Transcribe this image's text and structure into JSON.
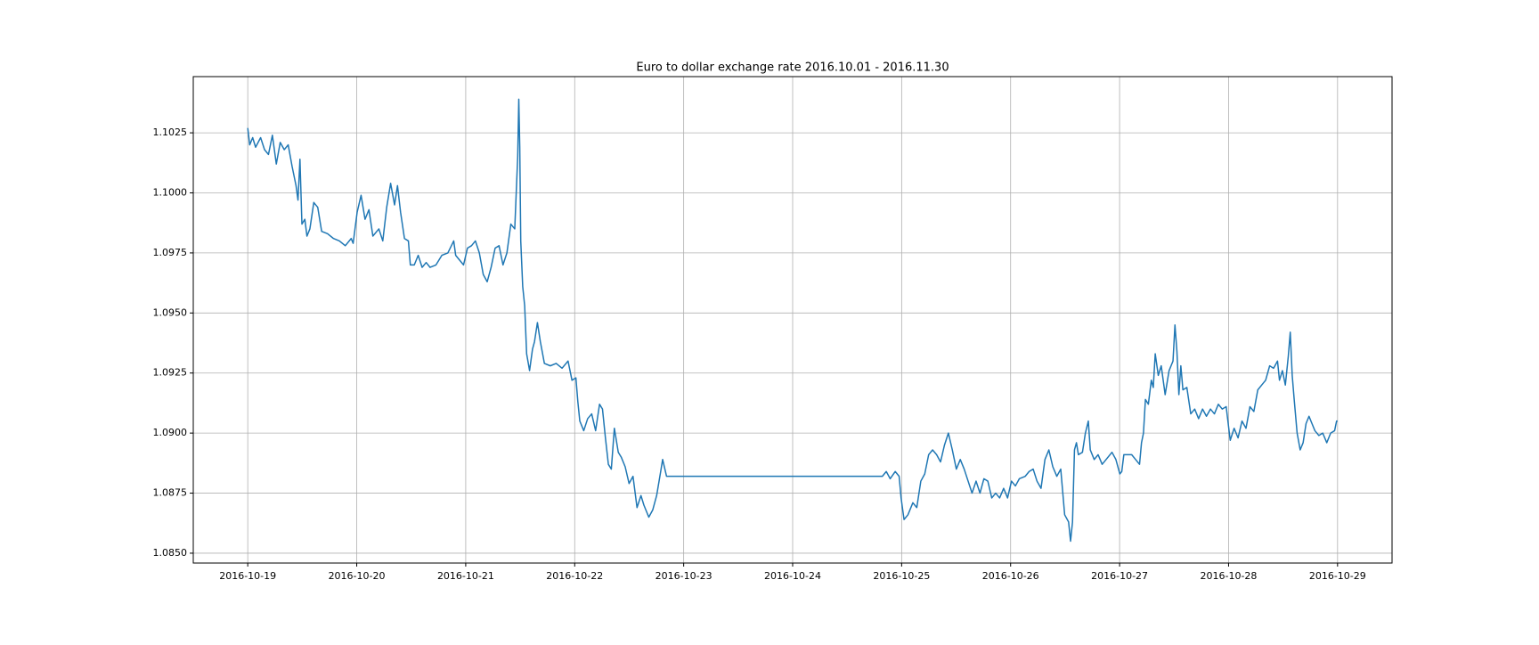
{
  "chart_data": {
    "type": "line",
    "title": "Euro to dollar exchange rate 2016.10.01 - 2016.11.30",
    "color": "#1f77b4",
    "grid": true,
    "xlim": [
      17092.5,
      17103.5
    ],
    "xticks": [
      {
        "value": 17093,
        "label": "2016-10-19"
      },
      {
        "value": 17094,
        "label": "2016-10-20"
      },
      {
        "value": 17095,
        "label": "2016-10-21"
      },
      {
        "value": 17096,
        "label": "2016-10-22"
      },
      {
        "value": 17097,
        "label": "2016-10-23"
      },
      {
        "value": 17098,
        "label": "2016-10-24"
      },
      {
        "value": 17099,
        "label": "2016-10-25"
      },
      {
        "value": 17100,
        "label": "2016-10-26"
      },
      {
        "value": 17101,
        "label": "2016-10-27"
      },
      {
        "value": 17102,
        "label": "2016-10-28"
      },
      {
        "value": 17103,
        "label": "2016-10-29"
      }
    ],
    "ylim": [
      1.08459,
      1.10484
    ],
    "yticks": [
      {
        "value": 1.085,
        "label": "1.0850"
      },
      {
        "value": 1.0875,
        "label": "1.0875"
      },
      {
        "value": 1.09,
        "label": "1.0900"
      },
      {
        "value": 1.0925,
        "label": "1.0925"
      },
      {
        "value": 1.095,
        "label": "1.0950"
      },
      {
        "value": 1.0975,
        "label": "1.0975"
      },
      {
        "value": 1.1,
        "label": "1.1000"
      },
      {
        "value": 1.1025,
        "label": "1.1025"
      }
    ],
    "x": [
      17093.0,
      17093.018,
      17093.045,
      17093.072,
      17093.118,
      17093.154,
      17093.19,
      17093.226,
      17093.262,
      17093.298,
      17093.335,
      17093.371,
      17093.407,
      17093.443,
      17093.461,
      17093.479,
      17093.497,
      17093.524,
      17093.543,
      17093.57,
      17093.606,
      17093.642,
      17093.678,
      17093.732,
      17093.787,
      17093.841,
      17093.895,
      17093.949,
      17093.967,
      17094.004,
      17094.04,
      17094.076,
      17094.112,
      17094.148,
      17094.203,
      17094.239,
      17094.275,
      17094.311,
      17094.347,
      17094.374,
      17094.402,
      17094.438,
      17094.474,
      17094.492,
      17094.528,
      17094.564,
      17094.6,
      17094.637,
      17094.673,
      17094.727,
      17094.781,
      17094.836,
      17094.89,
      17094.908,
      17094.944,
      17094.98,
      17095.016,
      17095.053,
      17095.089,
      17095.125,
      17095.161,
      17095.197,
      17095.233,
      17095.27,
      17095.306,
      17095.342,
      17095.378,
      17095.414,
      17095.45,
      17095.477,
      17095.487,
      17095.496,
      17095.505,
      17095.523,
      17095.541,
      17095.559,
      17095.586,
      17095.613,
      17095.631,
      17095.658,
      17095.685,
      17095.722,
      17095.776,
      17095.83,
      17095.884,
      17095.939,
      17095.975,
      17096.011,
      17096.029,
      17096.047,
      17096.083,
      17096.119,
      17096.156,
      17096.192,
      17096.228,
      17096.255,
      17096.282,
      17096.309,
      17096.336,
      17096.364,
      17096.4,
      17096.427,
      17096.463,
      17096.499,
      17096.535,
      17096.572,
      17096.608,
      17096.635,
      17096.68,
      17096.716,
      17096.752,
      17096.789,
      17096.807,
      17096.843,
      17096.879,
      17098.823,
      17098.859,
      17098.895,
      17098.941,
      17098.977,
      17098.995,
      17099.022,
      17099.058,
      17099.103,
      17099.139,
      17099.176,
      17099.212,
      17099.248,
      17099.284,
      17099.321,
      17099.357,
      17099.393,
      17099.429,
      17099.465,
      17099.502,
      17099.538,
      17099.574,
      17099.61,
      17099.646,
      17099.683,
      17099.719,
      17099.755,
      17099.791,
      17099.827,
      17099.863,
      17099.899,
      17099.936,
      17099.972,
      17100.008,
      17100.044,
      17100.08,
      17100.134,
      17100.17,
      17100.207,
      17100.242,
      17100.279,
      17100.315,
      17100.351,
      17100.387,
      17100.424,
      17100.46,
      17100.496,
      17100.532,
      17100.55,
      17100.568,
      17100.586,
      17100.604,
      17100.622,
      17100.659,
      17100.686,
      17100.713,
      17100.731,
      17100.767,
      17100.803,
      17100.84,
      17100.876,
      17100.93,
      17100.966,
      17101.002,
      17101.02,
      17101.039,
      17101.074,
      17101.111,
      17101.147,
      17101.183,
      17101.201,
      17101.219,
      17101.237,
      17101.264,
      17101.291,
      17101.309,
      17101.327,
      17101.355,
      17101.382,
      17101.418,
      17101.454,
      17101.49,
      17101.508,
      17101.526,
      17101.544,
      17101.562,
      17101.581,
      17101.617,
      17101.653,
      17101.689,
      17101.725,
      17101.761,
      17101.797,
      17101.834,
      17101.87,
      17101.906,
      17101.942,
      17101.978,
      17102.015,
      17102.051,
      17102.087,
      17102.123,
      17102.16,
      17102.196,
      17102.232,
      17102.268,
      17102.304,
      17102.34,
      17102.377,
      17102.413,
      17102.449,
      17102.467,
      17102.494,
      17102.521,
      17102.548,
      17102.566,
      17102.584,
      17102.602,
      17102.629,
      17102.657,
      17102.684,
      17102.711,
      17102.738,
      17102.765,
      17102.792,
      17102.828,
      17102.864,
      17102.901,
      17102.937,
      17102.973,
      17102.991,
      17103.0
    ],
    "values": [
      1.1027,
      1.102,
      1.1023,
      1.1019,
      1.1023,
      1.1018,
      1.1016,
      1.1024,
      1.1012,
      1.1021,
      1.1018,
      1.102,
      1.1011,
      1.1003,
      1.0997,
      1.1014,
      1.0987,
      1.0989,
      1.0982,
      1.0985,
      1.0996,
      1.0994,
      1.0984,
      1.0983,
      1.0981,
      1.098,
      1.0978,
      1.0981,
      1.0979,
      1.0992,
      1.0999,
      1.0989,
      1.0993,
      1.0982,
      1.0985,
      1.098,
      1.0994,
      1.1004,
      1.0995,
      1.1003,
      1.0992,
      1.0981,
      1.098,
      1.097,
      1.097,
      1.0974,
      1.0969,
      1.0971,
      1.0969,
      1.097,
      1.0974,
      1.0975,
      1.098,
      1.0974,
      1.0972,
      1.097,
      1.0977,
      1.0978,
      1.098,
      1.0975,
      1.0966,
      1.0963,
      1.0969,
      1.0977,
      1.0978,
      1.097,
      1.0975,
      1.0987,
      1.0985,
      1.1015,
      1.1039,
      1.1019,
      1.098,
      1.0961,
      1.0953,
      1.0933,
      1.0926,
      1.0935,
      1.0938,
      1.0946,
      1.0938,
      1.0929,
      1.0928,
      1.0929,
      1.0927,
      1.093,
      1.0922,
      1.0923,
      1.0913,
      1.0905,
      1.0901,
      1.0906,
      1.0908,
      1.0901,
      1.0912,
      1.091,
      1.0898,
      1.0887,
      1.0885,
      1.0902,
      1.0892,
      1.089,
      1.0886,
      1.0879,
      1.0882,
      1.0869,
      1.0874,
      1.087,
      1.0865,
      1.0868,
      1.0874,
      1.0884,
      1.0889,
      1.0882,
      1.0882,
      1.0882,
      1.0884,
      1.0881,
      1.0884,
      1.0882,
      1.0873,
      1.0864,
      1.0866,
      1.0871,
      1.0869,
      1.088,
      1.0883,
      1.0891,
      1.0893,
      1.0891,
      1.0888,
      1.0895,
      1.09,
      1.0893,
      1.0885,
      1.0889,
      1.0885,
      1.088,
      1.0875,
      1.088,
      1.0875,
      1.0881,
      1.088,
      1.0873,
      1.0875,
      1.0873,
      1.0877,
      1.0873,
      1.088,
      1.0878,
      1.0881,
      1.0882,
      1.0884,
      1.0885,
      1.088,
      1.0877,
      1.0889,
      1.0893,
      1.0886,
      1.0882,
      1.0885,
      1.0866,
      1.0863,
      1.0855,
      1.0863,
      1.0893,
      1.0896,
      1.0891,
      1.0892,
      1.09,
      1.0905,
      1.0893,
      1.0889,
      1.0891,
      1.0887,
      1.0889,
      1.0892,
      1.0889,
      1.0883,
      1.0884,
      1.0891,
      1.0891,
      1.0891,
      1.0889,
      1.0887,
      1.0896,
      1.09,
      1.0914,
      1.0912,
      1.0922,
      1.0919,
      1.0933,
      1.0924,
      1.0928,
      1.0916,
      1.0926,
      1.093,
      1.0945,
      1.0934,
      1.0916,
      1.0928,
      1.0918,
      1.0919,
      1.0908,
      1.091,
      1.0906,
      1.091,
      1.0907,
      1.091,
      1.0908,
      1.0912,
      1.091,
      1.0911,
      1.0897,
      1.0902,
      1.0898,
      1.0905,
      1.0902,
      1.0911,
      1.0909,
      1.0918,
      1.092,
      1.0922,
      1.0928,
      1.0927,
      1.093,
      1.0922,
      1.0926,
      1.092,
      1.0932,
      1.0942,
      1.0924,
      1.0914,
      1.09,
      1.0893,
      1.0896,
      1.0904,
      1.0907,
      1.0904,
      1.0901,
      1.0899,
      1.09,
      1.0896,
      1.09,
      1.0901,
      1.0905,
      1.0905
    ]
  }
}
